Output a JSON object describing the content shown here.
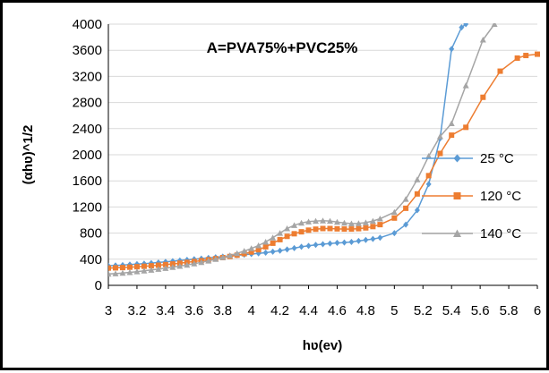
{
  "chart_data": {
    "type": "line",
    "title": "A=PVA75%+PVC25%",
    "xlabel": "hʋ(ev)",
    "ylabel": "(αhʋ)^1/2",
    "xlim": [
      3,
      6
    ],
    "ylim": [
      0,
      4000
    ],
    "xticks": [
      "3",
      "3.2",
      "3.4",
      "3.6",
      "3.8",
      "4",
      "4.2",
      "4.4",
      "4.6",
      "4.8",
      "5",
      "5.2",
      "5.4",
      "5.6",
      "5.8",
      "6"
    ],
    "yticks": [
      "0",
      "400",
      "800",
      "1200",
      "1600",
      "2000",
      "2400",
      "2800",
      "3200",
      "3600",
      "4000"
    ],
    "grid": "horizontal",
    "legend_position": "right",
    "series": [
      {
        "name": "25 °C",
        "color": "#5B9BD5",
        "marker": "diamond",
        "x": [
          3.0,
          3.05,
          3.1,
          3.15,
          3.2,
          3.25,
          3.3,
          3.35,
          3.4,
          3.45,
          3.5,
          3.55,
          3.6,
          3.65,
          3.7,
          3.75,
          3.8,
          3.85,
          3.9,
          3.95,
          4.0,
          4.05,
          4.1,
          4.15,
          4.2,
          4.25,
          4.3,
          4.35,
          4.4,
          4.45,
          4.5,
          4.55,
          4.6,
          4.65,
          4.7,
          4.75,
          4.8,
          4.85,
          4.9,
          5.0,
          5.08,
          5.16,
          5.24,
          5.32,
          5.4,
          5.47,
          5.5
        ],
        "y": [
          300,
          305,
          310,
          318,
          325,
          333,
          340,
          350,
          360,
          370,
          380,
          390,
          400,
          410,
          420,
          430,
          440,
          450,
          460,
          470,
          480,
          490,
          500,
          515,
          530,
          550,
          570,
          590,
          605,
          620,
          630,
          640,
          650,
          655,
          665,
          680,
          695,
          710,
          730,
          800,
          930,
          1150,
          1550,
          2250,
          3620,
          3950,
          4000
        ]
      },
      {
        "name": "120 °C",
        "color": "#ED7D31",
        "marker": "square",
        "x": [
          3.0,
          3.05,
          3.1,
          3.15,
          3.2,
          3.25,
          3.3,
          3.35,
          3.4,
          3.45,
          3.5,
          3.55,
          3.6,
          3.65,
          3.7,
          3.75,
          3.8,
          3.85,
          3.9,
          3.95,
          4.0,
          4.05,
          4.1,
          4.15,
          4.2,
          4.25,
          4.3,
          4.35,
          4.4,
          4.45,
          4.5,
          4.55,
          4.6,
          4.65,
          4.7,
          4.75,
          4.8,
          4.85,
          4.9,
          5.0,
          5.08,
          5.16,
          5.24,
          5.32,
          5.4,
          5.5,
          5.62,
          5.74,
          5.86,
          5.92,
          6.0
        ],
        "y": [
          265,
          268,
          272,
          278,
          285,
          292,
          300,
          308,
          318,
          328,
          340,
          352,
          365,
          378,
          392,
          408,
          425,
          442,
          462,
          485,
          510,
          545,
          590,
          645,
          700,
          750,
          790,
          820,
          845,
          860,
          870,
          870,
          865,
          862,
          862,
          868,
          880,
          900,
          930,
          1030,
          1180,
          1400,
          1680,
          2020,
          2300,
          2420,
          2880,
          3280,
          3480,
          3520,
          3540
        ]
      },
      {
        "name": "140 °C",
        "color": "#A5A5A5",
        "marker": "triangle",
        "x": [
          3.0,
          3.05,
          3.1,
          3.15,
          3.2,
          3.25,
          3.3,
          3.35,
          3.4,
          3.45,
          3.5,
          3.55,
          3.6,
          3.65,
          3.7,
          3.75,
          3.8,
          3.85,
          3.9,
          3.95,
          4.0,
          4.05,
          4.1,
          4.15,
          4.2,
          4.25,
          4.3,
          4.35,
          4.4,
          4.45,
          4.5,
          4.55,
          4.6,
          4.65,
          4.7,
          4.75,
          4.8,
          4.85,
          4.9,
          5.0,
          5.08,
          5.16,
          5.24,
          5.32,
          5.4,
          5.5,
          5.62,
          5.7
        ],
        "y": [
          175,
          180,
          188,
          198,
          210,
          222,
          235,
          248,
          262,
          278,
          295,
          312,
          332,
          352,
          375,
          400,
          428,
          458,
          490,
          525,
          565,
          610,
          665,
          730,
          800,
          870,
          920,
          955,
          975,
          985,
          990,
          985,
          970,
          955,
          945,
          948,
          960,
          985,
          1020,
          1120,
          1320,
          1620,
          1980,
          2280,
          2480,
          3060,
          3760,
          4000
        ]
      }
    ]
  }
}
